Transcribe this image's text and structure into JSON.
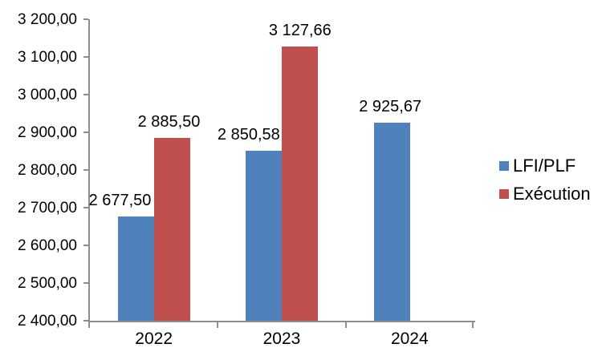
{
  "chart_data": {
    "type": "bar",
    "title": "",
    "xlabel": "",
    "ylabel": "",
    "categories": [
      "2022",
      "2023",
      "2024"
    ],
    "series": [
      {
        "name": "LFI/PLF",
        "color": "#4F81BD",
        "values": [
          2677.5,
          2850.58,
          2925.67
        ],
        "data_labels": [
          "2 677,50",
          "2 850,58",
          "2 925,67"
        ],
        "label_dx": [
          -20,
          -19,
          -2
        ]
      },
      {
        "name": "Exécution",
        "color": "#C0504D",
        "values": [
          2885.5,
          3127.66,
          null
        ],
        "data_labels": [
          "2 885,50",
          "3 127,66",
          null
        ],
        "label_dx": [
          -4,
          0,
          0
        ]
      }
    ],
    "ylim": [
      2400,
      3200
    ],
    "ytick_step": 100,
    "ytick_labels": [
      "2 400,00",
      "2 500,00",
      "2 600,00",
      "2 700,00",
      "2 800,00",
      "2 900,00",
      "3 000,00",
      "3 100,00",
      "3 200,00"
    ],
    "grid": false,
    "legend_position": "right",
    "axis_color": "#8E8E8E",
    "text_color": "#000000",
    "background": "#FFFFFF"
  }
}
